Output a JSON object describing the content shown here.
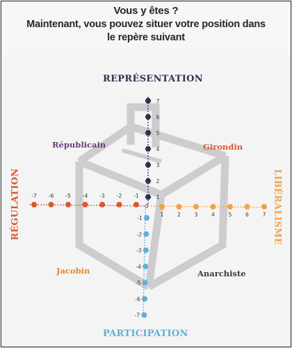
{
  "header": {
    "line1": "Vous y êtes ?",
    "line2": "Maintenant, vous pouvez situer votre position dans le repère suivant"
  },
  "axes": {
    "top": "REPRÉSENTATION",
    "bottom": "PARTICIPATION",
    "left": "RÉGULATION",
    "right": "LIBÉRALISME"
  },
  "quadrants": {
    "top_left": "Républicain",
    "top_right": "Girondin",
    "bottom_left": "Jacobin",
    "bottom_right": "Anarchiste"
  },
  "ticks": {
    "up": [
      "1",
      "2",
      "3",
      "4",
      "5",
      "6",
      "7"
    ],
    "down": [
      "-1",
      "-2",
      "-3",
      "-4",
      "-5",
      "-6",
      "-7"
    ],
    "left": [
      "-1",
      "-2",
      "-3",
      "-4",
      "-5",
      "-6",
      "-7"
    ],
    "right": [
      "1",
      "2",
      "3",
      "4",
      "5",
      "6",
      "7"
    ],
    "origin": "0"
  },
  "colors": {
    "top_axis": "#2b3350",
    "bottom_axis": "#5fb0d8",
    "left_axis": "#d8582c",
    "right_axis": "#f0a24a",
    "republicain": "#6b3a7a",
    "girondin": "#d65a30",
    "jacobin": "#e0892c",
    "anarchiste": "#3a3a3a",
    "ballot_box": "#cfcfd1"
  }
}
